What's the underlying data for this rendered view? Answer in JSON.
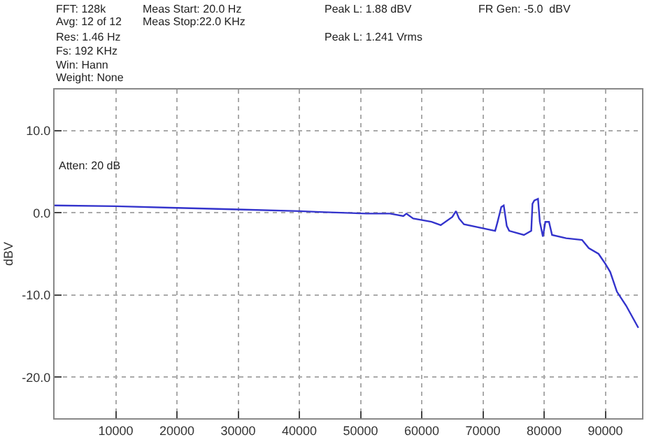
{
  "chart_data": {
    "type": "line",
    "ylabel": "dBV",
    "annotations": [
      "FFT: 128k",
      "Avg: 12 of 12",
      "Res: 1.46 Hz",
      "Fs: 192 KHz",
      "Win: Hann",
      "Weight: None",
      "Meas Start: 20.0 Hz",
      "Meas Stop:22.0 KHz",
      "Peak L: 1.88 dBV",
      "Peak L: 1.241 Vrms",
      "FR Gen: -5.0  dBV",
      "Atten: 20 dB"
    ],
    "x": [
      0,
      10000,
      20000,
      30000,
      40000,
      43400,
      51000,
      54800,
      57000,
      57500,
      58600,
      61600,
      63100,
      65000,
      65600,
      66100,
      66900,
      72000,
      72400,
      73000,
      73400,
      73900,
      74300,
      76700,
      77900,
      78100,
      78400,
      79000,
      79300,
      79800,
      80200,
      80800,
      81300,
      83600,
      86200,
      87300,
      88900,
      90000,
      90800,
      91900,
      93400,
      95400
    ],
    "series": [
      {
        "color": "#3333cc",
        "values": [
          0.9,
          0.8,
          0.6,
          0.4,
          0.2,
          0.1,
          -0.1,
          -0.1,
          -0.4,
          -0.1,
          -0.7,
          -1.1,
          -1.5,
          -0.5,
          0.2,
          -0.7,
          -1.4,
          -2.2,
          -1.1,
          0.7,
          0.9,
          -1.6,
          -2.2,
          -2.7,
          -2.2,
          1.1,
          1.5,
          1.7,
          -1.1,
          -2.9,
          -1.1,
          -1.1,
          -2.7,
          -3.1,
          -3.3,
          -4.3,
          -5.0,
          -6.2,
          -7.2,
          -9.6,
          -11.3,
          -14.0
        ]
      }
    ],
    "xlim": [
      0,
      96000
    ],
    "xticks": [
      10000,
      20000,
      30000,
      40000,
      50000,
      60000,
      70000,
      80000,
      90000
    ],
    "ylim": [
      -25,
      15
    ],
    "yticks": [
      {
        "value": 10,
        "label": "10.0"
      },
      {
        "value": 0,
        "label": "0.0"
      },
      {
        "value": -10,
        "label": "-10.0"
      },
      {
        "value": -20,
        "label": "-20.0"
      }
    ],
    "grid": true,
    "line_style": "solid",
    "marker": "none"
  }
}
